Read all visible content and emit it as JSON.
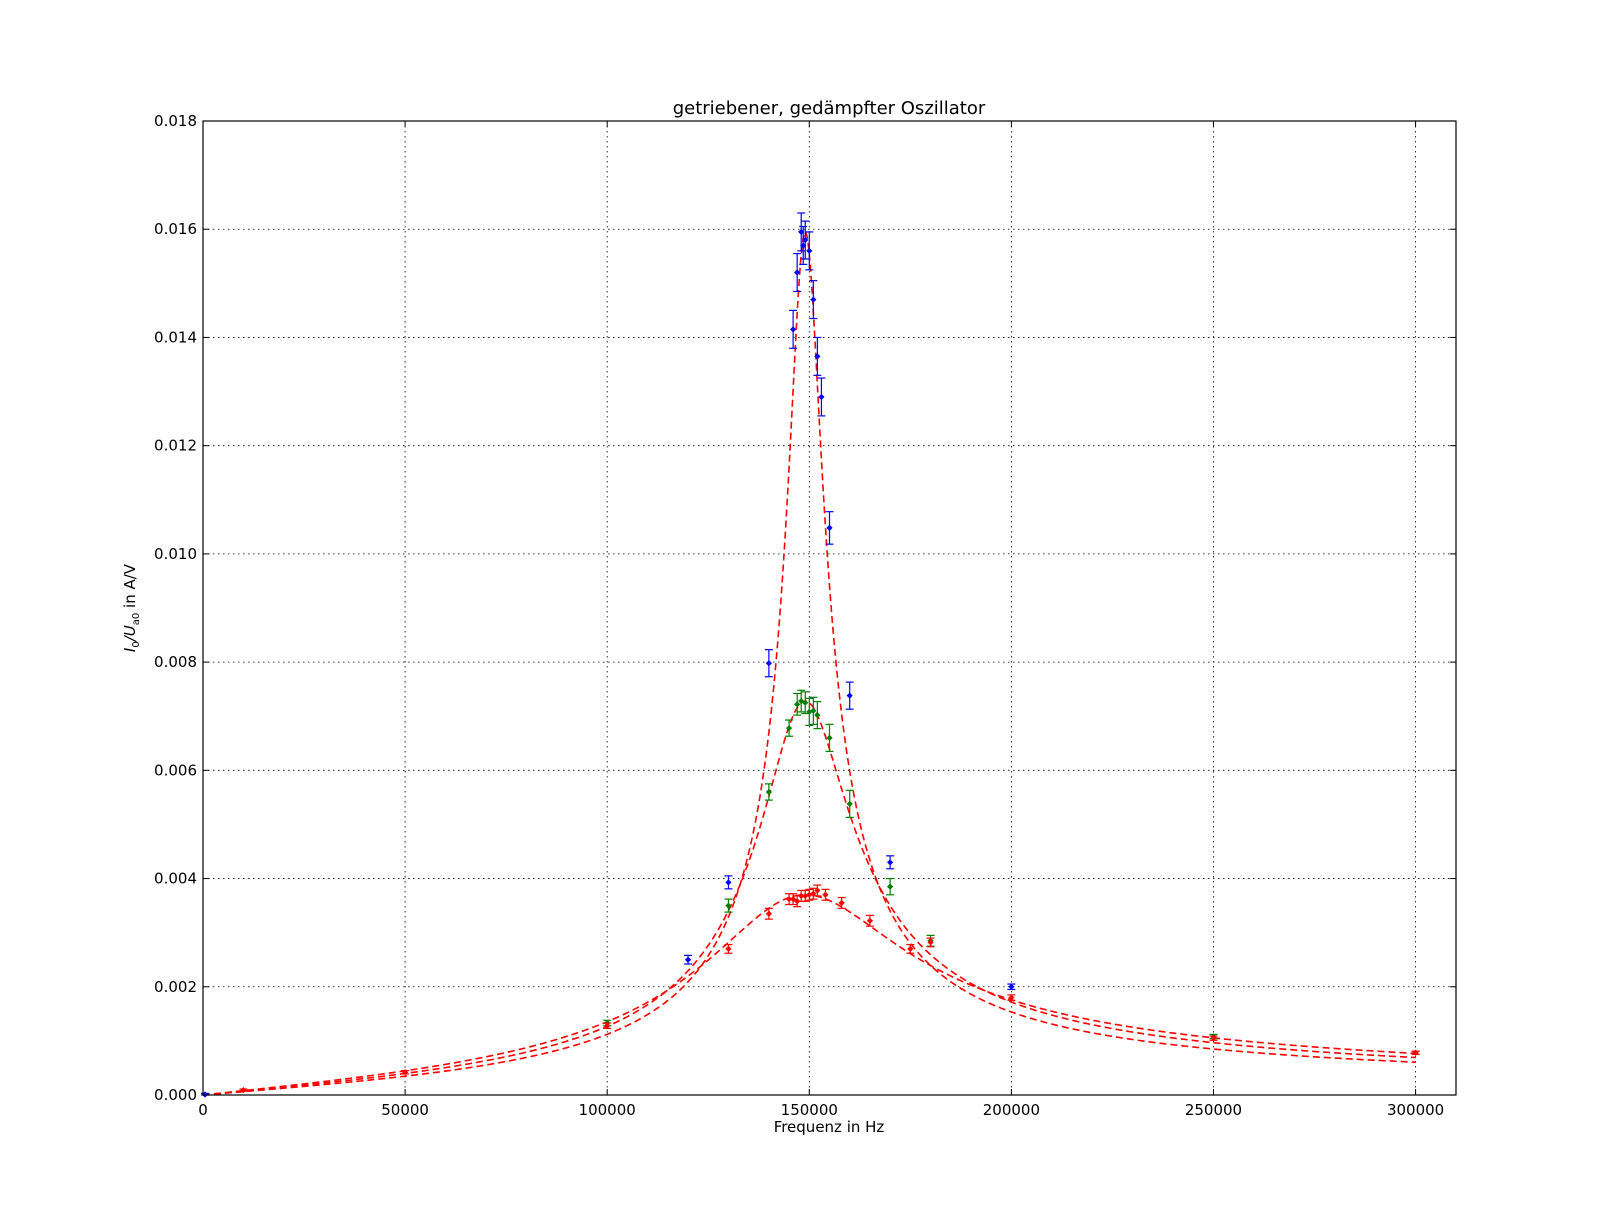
{
  "chart_data": {
    "type": "scatter",
    "title": "getriebener, gedämpfter Oszillator",
    "xlabel": "Frequenz in Hz",
    "ylabel_parts": [
      "I",
      "0",
      "/U",
      "a0",
      " in A/V"
    ],
    "xlim": [
      0,
      310000
    ],
    "ylim": [
      0,
      0.018
    ],
    "xticks": [
      0,
      50000,
      100000,
      150000,
      200000,
      250000,
      300000
    ],
    "xtick_labels": [
      "0",
      "50000",
      "100000",
      "150000",
      "200000",
      "250000",
      "300000"
    ],
    "yticks": [
      0,
      0.002,
      0.004,
      0.006,
      0.008,
      0.01,
      0.012,
      0.014,
      0.016,
      0.018
    ],
    "ytick_labels": [
      "0.000",
      "0.002",
      "0.004",
      "0.006",
      "0.008",
      "0.010",
      "0.012",
      "0.014",
      "0.016",
      "0.018"
    ],
    "grid": true,
    "series": [
      {
        "color": "#0000ff",
        "points": [
          [
            500,
            1e-05,
            2e-05
          ],
          [
            120000,
            0.0025,
            8e-05
          ],
          [
            130000,
            0.00393,
            0.00012
          ],
          [
            140000,
            0.00798,
            0.00025
          ],
          [
            146000,
            0.01415,
            0.00035
          ],
          [
            147000,
            0.0152,
            0.00035
          ],
          [
            148000,
            0.01595,
            0.00035
          ],
          [
            148500,
            0.0157,
            0.00035
          ],
          [
            149000,
            0.0158,
            0.00035
          ],
          [
            150000,
            0.0156,
            0.00035
          ],
          [
            151000,
            0.0147,
            0.00035
          ],
          [
            152000,
            0.01365,
            0.00035
          ],
          [
            153000,
            0.0129,
            0.00035
          ],
          [
            155000,
            0.01048,
            0.0003
          ],
          [
            160000,
            0.00738,
            0.00025
          ],
          [
            170000,
            0.0043,
            0.00012
          ],
          [
            200000,
            0.002,
            5e-05
          ]
        ]
      },
      {
        "color": "#008000",
        "points": [
          [
            100000,
            0.00133,
            5e-05
          ],
          [
            130000,
            0.0035,
            0.00012
          ],
          [
            140000,
            0.0056,
            0.00015
          ],
          [
            145000,
            0.00678,
            0.00015
          ],
          [
            147000,
            0.00722,
            0.0002
          ],
          [
            148000,
            0.00728,
            0.0002
          ],
          [
            149000,
            0.00725,
            0.0002
          ],
          [
            150000,
            0.00708,
            0.00025
          ],
          [
            151000,
            0.0071,
            0.00025
          ],
          [
            152000,
            0.00702,
            0.00025
          ],
          [
            155000,
            0.0066,
            0.00025
          ],
          [
            160000,
            0.00538,
            0.00025
          ],
          [
            170000,
            0.00385,
            0.00015
          ],
          [
            180000,
            0.00285,
            0.0001
          ],
          [
            250000,
            0.00108,
            4e-05
          ],
          [
            300000,
            0.00078,
            3e-05
          ]
        ]
      },
      {
        "color": "#ff0000",
        "points": [
          [
            10000,
            9e-05,
            2e-05
          ],
          [
            50000,
            0.00042,
            3e-05
          ],
          [
            100000,
            0.00128,
            5e-05
          ],
          [
            130000,
            0.0027,
            8e-05
          ],
          [
            140000,
            0.00335,
            0.0001
          ],
          [
            145000,
            0.00362,
            0.0001
          ],
          [
            146000,
            0.00362,
            0.0001
          ],
          [
            147000,
            0.00358,
            0.0001
          ],
          [
            148000,
            0.00368,
            0.0001
          ],
          [
            149000,
            0.00368,
            0.0001
          ],
          [
            150000,
            0.0037,
            0.0001
          ],
          [
            151000,
            0.00372,
            0.0001
          ],
          [
            152000,
            0.00378,
            0.0001
          ],
          [
            154000,
            0.0037,
            0.0001
          ],
          [
            158000,
            0.00355,
            0.0001
          ],
          [
            165000,
            0.00322,
            0.0001
          ],
          [
            175000,
            0.0027,
            8e-05
          ],
          [
            180000,
            0.00282,
            8e-05
          ],
          [
            200000,
            0.0018,
            5e-05
          ],
          [
            250000,
            0.00105,
            4e-05
          ],
          [
            300000,
            0.00078,
            3e-05
          ]
        ]
      }
    ],
    "fit_curves": [
      {
        "color": "#ff0000",
        "style": "dashed",
        "f0": 149000,
        "peak": 0.01595,
        "width": 4300
      },
      {
        "color": "#ff0000",
        "style": "dashed",
        "f0": 149000,
        "peak": 0.00728,
        "width": 10800
      },
      {
        "color": "#ff0000",
        "style": "dashed",
        "f0": 149000,
        "peak": 0.0037,
        "width": 24000
      }
    ]
  }
}
